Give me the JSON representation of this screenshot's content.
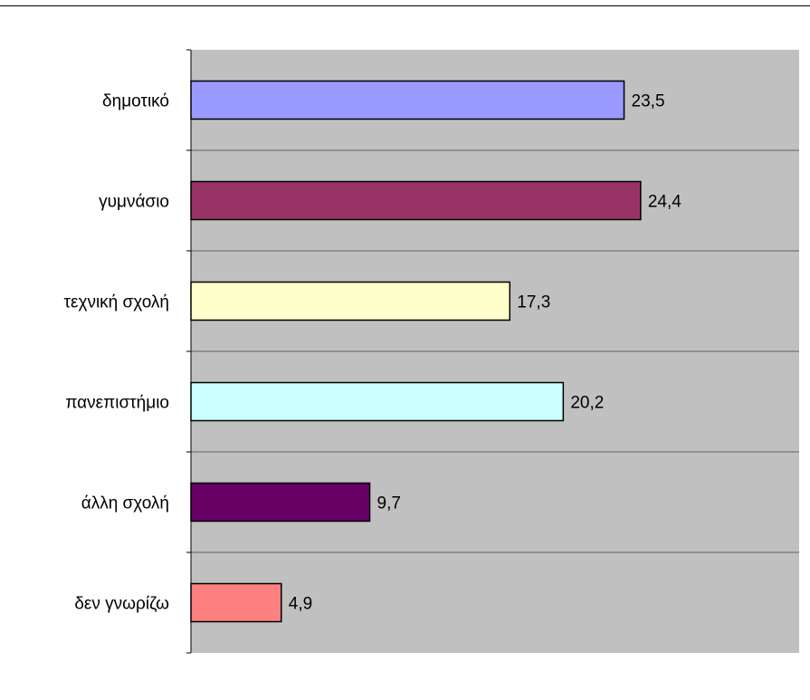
{
  "chart_data": {
    "type": "bar",
    "orientation": "horizontal",
    "categories": [
      "δημοτικό",
      "γυμνάσιο",
      "τεχνική σχολή",
      "πανεπιστήμιο",
      "άλλη σχολή",
      "δεν γνωρίζω"
    ],
    "values": [
      23.5,
      24.4,
      17.3,
      20.2,
      9.7,
      4.9
    ],
    "data_labels": [
      "23,5",
      "24,4",
      "17,3",
      "20,2",
      "9,7",
      "4,9"
    ],
    "colors": [
      "#9999FF",
      "#993366",
      "#FFFFCC",
      "#CCFFFF",
      "#660066",
      "#FF8080"
    ],
    "plot_background": "#C0C0C0",
    "grid": true,
    "xlim": [
      0,
      33
    ],
    "title": "",
    "xlabel": "",
    "ylabel": ""
  }
}
